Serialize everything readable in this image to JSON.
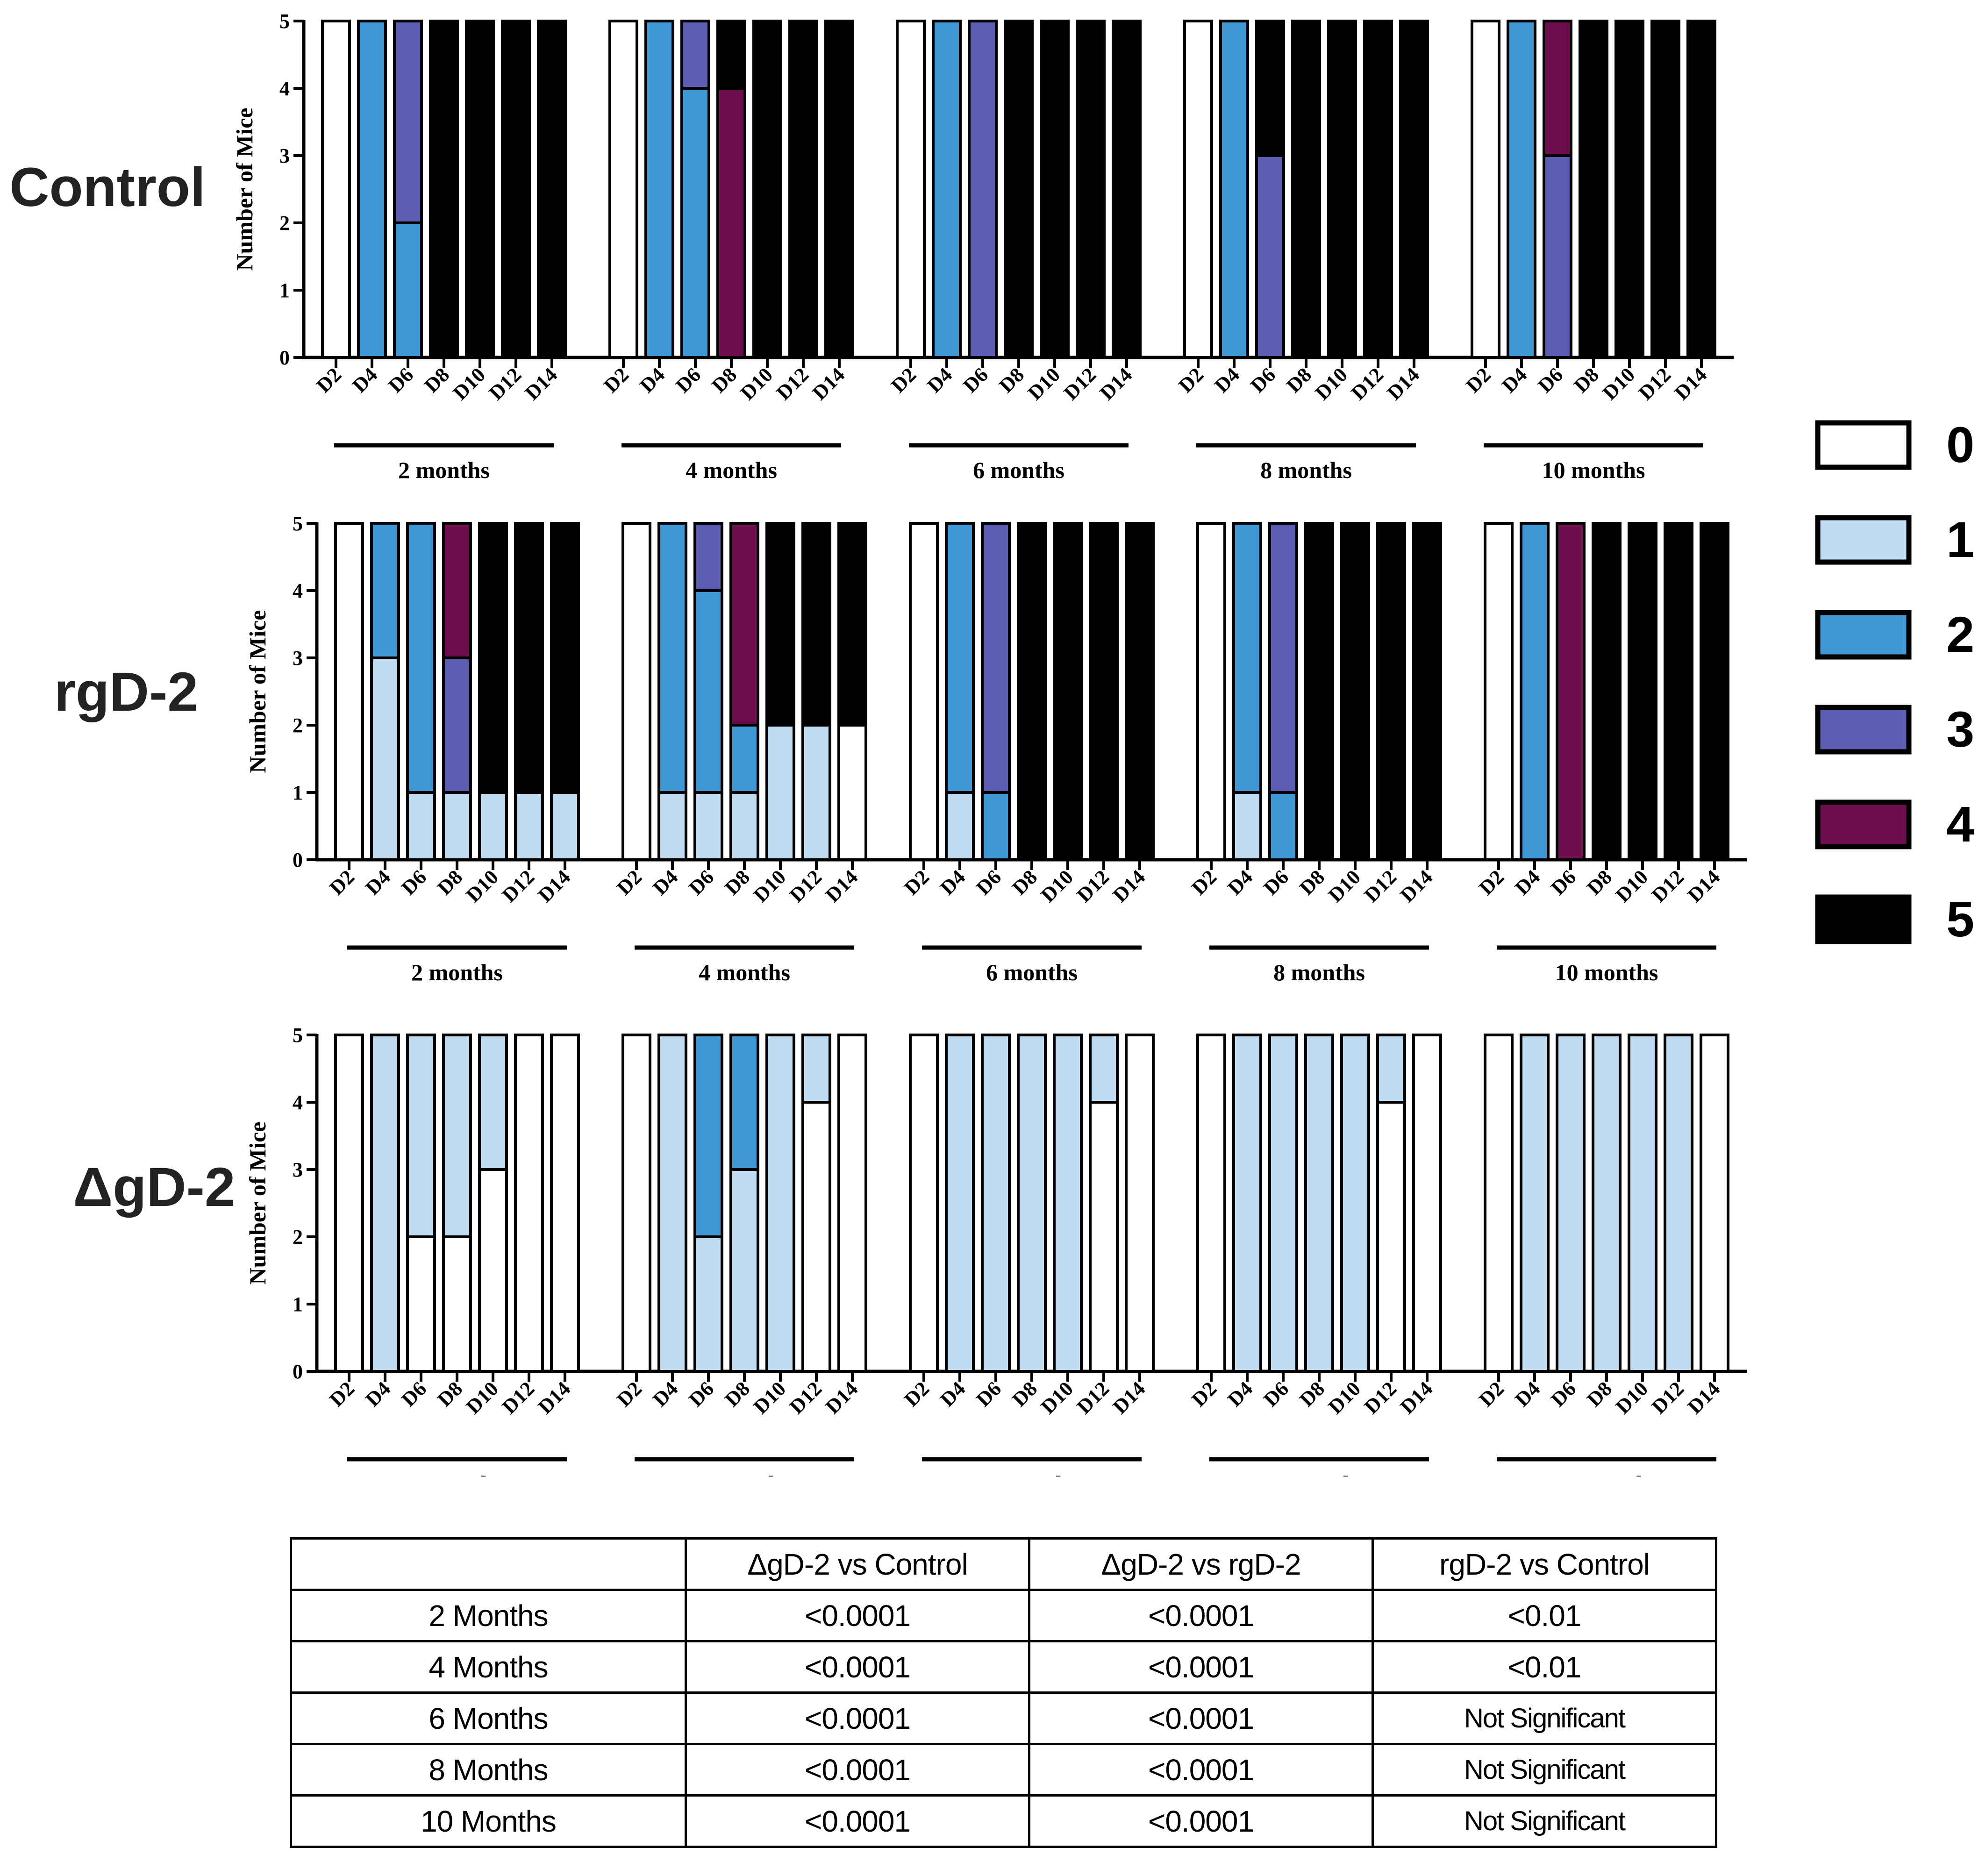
{
  "chart_data": {
    "type": "bar",
    "subtype": "stacked-bar",
    "ylabel": "Number of Mice",
    "ylim": [
      0,
      5
    ],
    "yticks": [
      "0",
      "1",
      "2",
      "3",
      "4",
      "5"
    ],
    "days": [
      "D2",
      "D4",
      "D6",
      "D8",
      "D10",
      "D12",
      "D14"
    ],
    "months": [
      "2 months",
      "4 months",
      "6 months",
      "8 months",
      "10 months"
    ],
    "legend": {
      "items": [
        {
          "label": "0",
          "color": "#ffffff"
        },
        {
          "label": "1",
          "color": "#c0dcf2"
        },
        {
          "label": "2",
          "color": "#3f97d6"
        },
        {
          "label": "3",
          "color": "#5c5db0"
        },
        {
          "label": "4",
          "color": "#6d0f4f"
        },
        {
          "label": "5",
          "color": "#000000"
        }
      ]
    },
    "panels": [
      {
        "label": "Control",
        "groups": [
          [
            [
              5,
              0,
              0,
              0,
              0,
              0
            ],
            [
              0,
              0,
              5,
              0,
              0,
              0
            ],
            [
              0,
              0,
              2,
              3,
              0,
              0
            ],
            [
              0,
              0,
              0,
              0,
              0,
              5
            ],
            [
              0,
              0,
              0,
              0,
              0,
              5
            ],
            [
              0,
              0,
              0,
              0,
              0,
              5
            ],
            [
              0,
              0,
              0,
              0,
              0,
              5
            ]
          ],
          [
            [
              5,
              0,
              0,
              0,
              0,
              0
            ],
            [
              0,
              0,
              5,
              0,
              0,
              0
            ],
            [
              0,
              0,
              4,
              1,
              0,
              0
            ],
            [
              0,
              0,
              0,
              0,
              4,
              1
            ],
            [
              0,
              0,
              0,
              0,
              0,
              5
            ],
            [
              0,
              0,
              0,
              0,
              0,
              5
            ],
            [
              0,
              0,
              0,
              0,
              0,
              5
            ]
          ],
          [
            [
              5,
              0,
              0,
              0,
              0,
              0
            ],
            [
              0,
              0,
              5,
              0,
              0,
              0
            ],
            [
              0,
              0,
              0,
              5,
              0,
              0
            ],
            [
              0,
              0,
              0,
              0,
              0,
              5
            ],
            [
              0,
              0,
              0,
              0,
              0,
              5
            ],
            [
              0,
              0,
              0,
              0,
              0,
              5
            ],
            [
              0,
              0,
              0,
              0,
              0,
              5
            ]
          ],
          [
            [
              5,
              0,
              0,
              0,
              0,
              0
            ],
            [
              0,
              0,
              5,
              0,
              0,
              0
            ],
            [
              0,
              0,
              0,
              3,
              0,
              2
            ],
            [
              0,
              0,
              0,
              0,
              0,
              5
            ],
            [
              0,
              0,
              0,
              0,
              0,
              5
            ],
            [
              0,
              0,
              0,
              0,
              0,
              5
            ],
            [
              0,
              0,
              0,
              0,
              0,
              5
            ]
          ],
          [
            [
              5,
              0,
              0,
              0,
              0,
              0
            ],
            [
              0,
              0,
              5,
              0,
              0,
              0
            ],
            [
              0,
              0,
              0,
              3,
              2,
              0
            ],
            [
              0,
              0,
              0,
              0,
              0,
              5
            ],
            [
              0,
              0,
              0,
              0,
              0,
              5
            ],
            [
              0,
              0,
              0,
              0,
              0,
              5
            ],
            [
              0,
              0,
              0,
              0,
              0,
              5
            ]
          ]
        ]
      },
      {
        "label": "rgD-2",
        "groups": [
          [
            [
              5,
              0,
              0,
              0,
              0,
              0
            ],
            [
              0,
              3,
              2,
              0,
              0,
              0
            ],
            [
              0,
              1,
              4,
              0,
              0,
              0
            ],
            [
              0,
              1,
              0,
              2,
              2,
              0
            ],
            [
              0,
              1,
              0,
              0,
              0,
              4
            ],
            [
              0,
              1,
              0,
              0,
              0,
              4
            ],
            [
              0,
              1,
              0,
              0,
              0,
              4
            ]
          ],
          [
            [
              5,
              0,
              0,
              0,
              0,
              0
            ],
            [
              0,
              1,
              4,
              0,
              0,
              0
            ],
            [
              0,
              1,
              3,
              1,
              0,
              0
            ],
            [
              0,
              1,
              1,
              0,
              3,
              0
            ],
            [
              0,
              2,
              0,
              0,
              0,
              3
            ],
            [
              0,
              2,
              0,
              0,
              0,
              3
            ],
            [
              2,
              0,
              0,
              0,
              0,
              3
            ]
          ],
          [
            [
              5,
              0,
              0,
              0,
              0,
              0
            ],
            [
              0,
              1,
              4,
              0,
              0,
              0
            ],
            [
              0,
              0,
              1,
              4,
              0,
              0
            ],
            [
              0,
              0,
              0,
              0,
              0,
              5
            ],
            [
              0,
              0,
              0,
              0,
              0,
              5
            ],
            [
              0,
              0,
              0,
              0,
              0,
              5
            ],
            [
              0,
              0,
              0,
              0,
              0,
              5
            ]
          ],
          [
            [
              5,
              0,
              0,
              0,
              0,
              0
            ],
            [
              0,
              1,
              4,
              0,
              0,
              0
            ],
            [
              0,
              0,
              1,
              4,
              0,
              0
            ],
            [
              0,
              0,
              0,
              0,
              0,
              5
            ],
            [
              0,
              0,
              0,
              0,
              0,
              5
            ],
            [
              0,
              0,
              0,
              0,
              0,
              5
            ],
            [
              0,
              0,
              0,
              0,
              0,
              5
            ]
          ],
          [
            [
              5,
              0,
              0,
              0,
              0,
              0
            ],
            [
              0,
              0,
              5,
              0,
              0,
              0
            ],
            [
              0,
              0,
              0,
              0,
              5,
              0
            ],
            [
              0,
              0,
              0,
              0,
              0,
              5
            ],
            [
              0,
              0,
              0,
              0,
              0,
              5
            ],
            [
              0,
              0,
              0,
              0,
              0,
              5
            ],
            [
              0,
              0,
              0,
              0,
              0,
              5
            ]
          ]
        ]
      },
      {
        "label": "ΔgD-2",
        "groups": [
          [
            [
              5,
              0,
              0,
              0,
              0,
              0
            ],
            [
              0,
              5,
              0,
              0,
              0,
              0
            ],
            [
              2,
              3,
              0,
              0,
              0,
              0
            ],
            [
              2,
              3,
              0,
              0,
              0,
              0
            ],
            [
              3,
              2,
              0,
              0,
              0,
              0
            ],
            [
              5,
              0,
              0,
              0,
              0,
              0
            ],
            [
              5,
              0,
              0,
              0,
              0,
              0
            ]
          ],
          [
            [
              5,
              0,
              0,
              0,
              0,
              0
            ],
            [
              0,
              5,
              0,
              0,
              0,
              0
            ],
            [
              0,
              2,
              3,
              0,
              0,
              0
            ],
            [
              0,
              3,
              2,
              0,
              0,
              0
            ],
            [
              0,
              5,
              0,
              0,
              0,
              0
            ],
            [
              4,
              1,
              0,
              0,
              0,
              0
            ],
            [
              5,
              0,
              0,
              0,
              0,
              0
            ]
          ],
          [
            [
              5,
              0,
              0,
              0,
              0,
              0
            ],
            [
              0,
              5,
              0,
              0,
              0,
              0
            ],
            [
              0,
              5,
              0,
              0,
              0,
              0
            ],
            [
              0,
              5,
              0,
              0,
              0,
              0
            ],
            [
              0,
              5,
              0,
              0,
              0,
              0
            ],
            [
              4,
              1,
              0,
              0,
              0,
              0
            ],
            [
              5,
              0,
              0,
              0,
              0,
              0
            ]
          ],
          [
            [
              5,
              0,
              0,
              0,
              0,
              0
            ],
            [
              0,
              5,
              0,
              0,
              0,
              0
            ],
            [
              0,
              5,
              0,
              0,
              0,
              0
            ],
            [
              0,
              5,
              0,
              0,
              0,
              0
            ],
            [
              0,
              5,
              0,
              0,
              0,
              0
            ],
            [
              4,
              1,
              0,
              0,
              0,
              0
            ],
            [
              5,
              0,
              0,
              0,
              0,
              0
            ]
          ],
          [
            [
              5,
              0,
              0,
              0,
              0,
              0
            ],
            [
              0,
              5,
              0,
              0,
              0,
              0
            ],
            [
              0,
              5,
              0,
              0,
              0,
              0
            ],
            [
              0,
              5,
              0,
              0,
              0,
              0
            ],
            [
              0,
              5,
              0,
              0,
              0,
              0
            ],
            [
              0,
              5,
              0,
              0,
              0,
              0
            ],
            [
              5,
              0,
              0,
              0,
              0,
              0
            ]
          ]
        ]
      }
    ]
  },
  "table": {
    "headers": [
      "",
      "ΔgD-2 vs Control",
      "ΔgD-2 vs rgD-2",
      "rgD-2 vs Control"
    ],
    "rows": [
      [
        "2 Months",
        "<0.0001",
        "<0.0001",
        "<0.01"
      ],
      [
        "4 Months",
        "<0.0001",
        "<0.0001",
        "<0.01"
      ],
      [
        "6 Months",
        "<0.0001",
        "<0.0001",
        "Not Significant"
      ],
      [
        "8 Months",
        "<0.0001",
        "<0.0001",
        "Not Significant"
      ],
      [
        "10 Months",
        "<0.0001",
        "<0.0001",
        "Not Significant"
      ]
    ]
  }
}
